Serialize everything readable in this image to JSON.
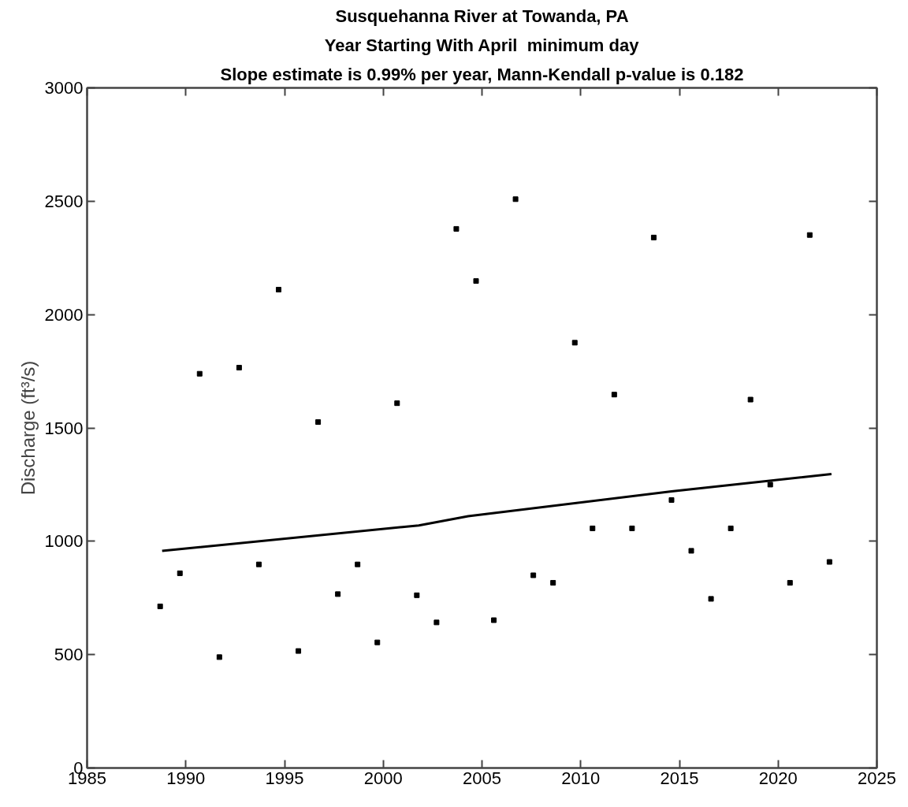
{
  "chart_data": {
    "type": "scatter",
    "title": "Susquehanna River at Towanda, PA",
    "subtitle": "Year Starting With April  minimum day",
    "annotations": [
      "Slope estimate is 0.99% per year, Mann-Kendall p-value is 0.182"
    ],
    "ylabel": "Discharge (ft³/s)",
    "x": [
      1988.7,
      1989.7,
      1990.7,
      1991.7,
      1992.7,
      1993.7,
      1994.7,
      1995.7,
      1996.7,
      1997.7,
      1998.7,
      1999.7,
      2000.7,
      2001.7,
      2002.7,
      2003.7,
      2004.7,
      2005.6,
      2006.7,
      2007.6,
      2008.6,
      2009.7,
      2010.6,
      2011.7,
      2012.6,
      2013.7,
      2014.6,
      2015.6,
      2016.6,
      2017.6,
      2018.6,
      2019.6,
      2020.6,
      2021.6,
      2022.6
    ],
    "series": [
      {
        "color": "#000000",
        "marker": "square",
        "values": [
          713,
          859,
          1739,
          489,
          1766,
          898,
          2110,
          516,
          1526,
          767,
          898,
          554,
          1609,
          762,
          642,
          2378,
          2148,
          652,
          2509,
          850,
          817,
          1876,
          1057,
          1647,
          1057,
          2340,
          1182,
          958,
          746,
          1057,
          1625,
          1250,
          817,
          2351,
          909
        ]
      },
      {
        "type": "line",
        "color": "#000000",
        "line_style": "solid",
        "x": [
          1988.8,
          2001.8,
          2004.3,
          2014.6,
          2022.7
        ],
        "values": [
          958,
          1070,
          1111,
          1220,
          1297
        ]
      }
    ],
    "xlim": [
      1985,
      2025
    ],
    "xticks": [
      1985,
      1990,
      1995,
      2000,
      2005,
      2010,
      2015,
      2020,
      2025
    ],
    "ylim": [
      0,
      3000
    ],
    "yticks": [
      0,
      500,
      1000,
      1500,
      2000,
      2500,
      3000
    ],
    "grid": false
  }
}
